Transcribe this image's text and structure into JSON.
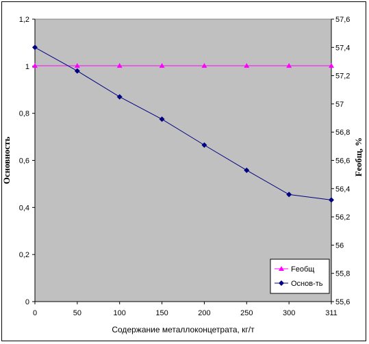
{
  "chart_data": {
    "type": "line",
    "categories": [
      "0",
      "50",
      "100",
      "150",
      "200",
      "250",
      "300",
      "311"
    ],
    "series": [
      {
        "name": "Feобщ",
        "axis": "right",
        "values": [
          57.27,
          57.27,
          57.27,
          57.27,
          57.27,
          57.27,
          57.27,
          57.27
        ],
        "color": "#ff00ff",
        "marker": "triangle"
      },
      {
        "name": "Основ-ть",
        "axis": "left",
        "values": [
          1.08,
          0.98,
          0.87,
          0.775,
          0.665,
          0.558,
          0.455,
          0.432
        ],
        "color": "#000080",
        "marker": "diamond"
      }
    ],
    "xlabel": "Содержание металлоконцетрата, кг/т",
    "ylabel_left": "Основность",
    "ylabel_right": "Feобщ, %",
    "ylim_left": [
      0,
      1.2
    ],
    "ylim_right": [
      55.6,
      57.6
    ],
    "yticks_left": [
      "0",
      "0,2",
      "0,4",
      "0,6",
      "0,8",
      "1",
      "1,2"
    ],
    "yticks_right": [
      "55,6",
      "55,8",
      "56",
      "56,2",
      "56,4",
      "56,6",
      "56,8",
      "57",
      "57,2",
      "57,4",
      "57,6"
    ],
    "grid": false,
    "legend_position": "bottom-right",
    "plot_background": "#c0c0c0"
  }
}
